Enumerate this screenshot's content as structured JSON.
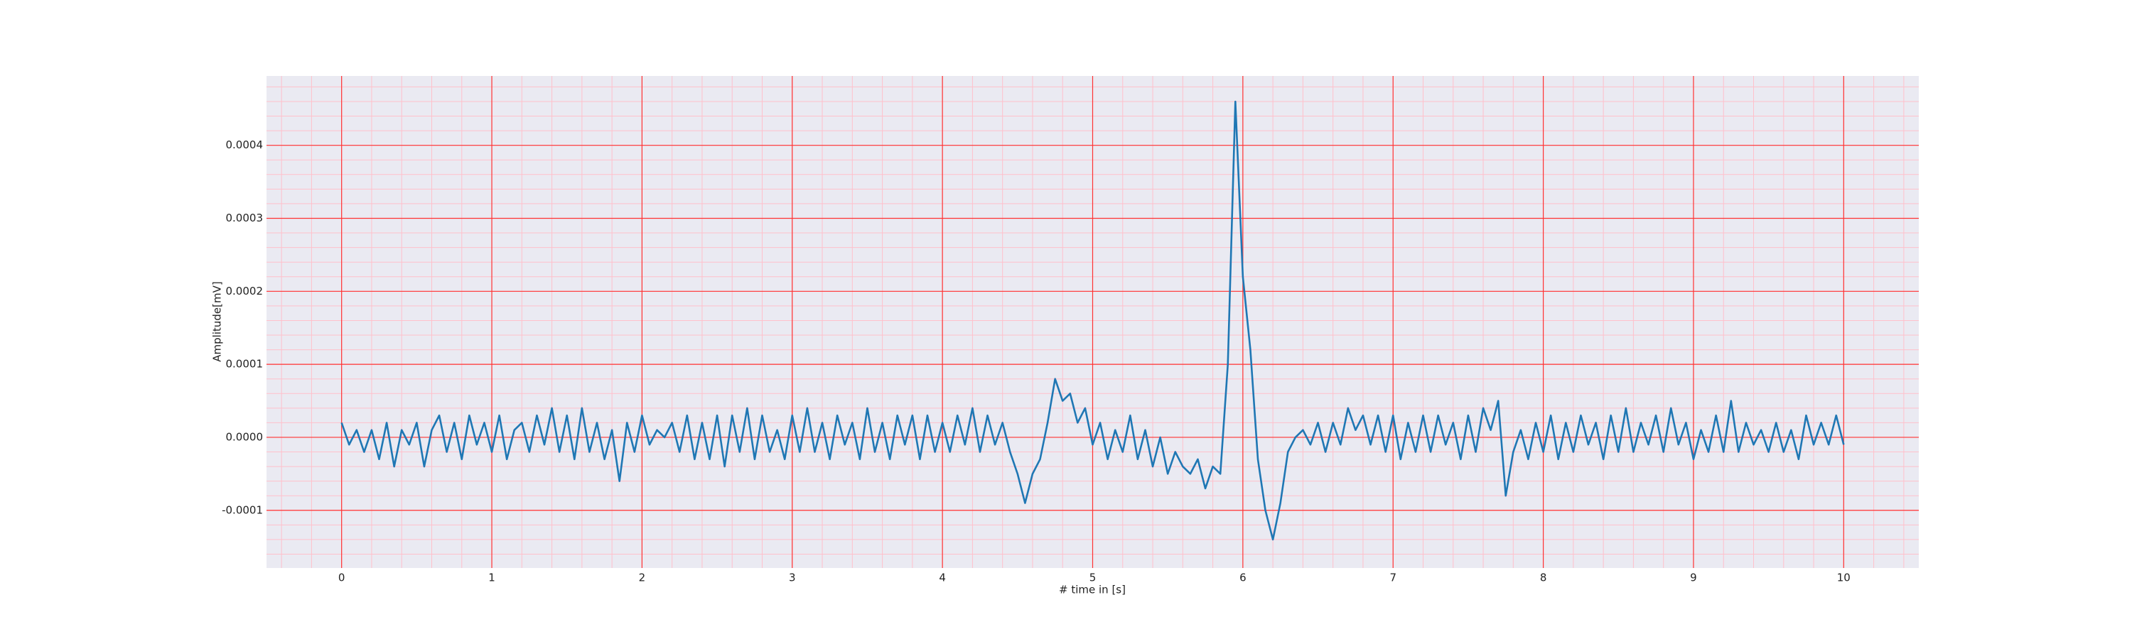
{
  "chart_data": {
    "type": "line",
    "xlabel": "# time in [s]",
    "ylabel": "Amplitude[mV]",
    "color": "#1f77b4",
    "grid": true,
    "minor_grid": true,
    "xlim": [
      -0.5,
      10.5
    ],
    "xticks": [
      0,
      1,
      2,
      3,
      4,
      5,
      6,
      7,
      8,
      9,
      10
    ],
    "ylim": [
      -0.000179,
      0.000495
    ],
    "yticks": [
      -0.0001,
      {
        "value": 0,
        "label": "0.0000"
      },
      0.0001,
      0.0002,
      0.0003,
      0.0004
    ],
    "x": [
      0,
      0.05,
      0.1,
      0.15,
      0.2,
      0.25,
      0.3,
      0.35,
      0.4,
      0.45,
      0.5,
      0.55,
      0.6,
      0.65,
      0.7,
      0.75,
      0.8,
      0.85,
      0.9,
      0.95,
      1,
      1.05,
      1.1,
      1.15,
      1.2,
      1.25,
      1.3,
      1.35,
      1.4,
      1.45,
      1.5,
      1.55,
      1.6,
      1.65,
      1.7,
      1.75,
      1.8,
      1.85,
      1.9,
      1.95,
      2,
      2.05,
      2.1,
      2.15,
      2.2,
      2.25,
      2.3,
      2.35,
      2.4,
      2.45,
      2.5,
      2.55,
      2.6,
      2.65,
      2.7,
      2.75,
      2.8,
      2.85,
      2.9,
      2.95,
      3,
      3.05,
      3.1,
      3.15,
      3.2,
      3.25,
      3.3,
      3.35,
      3.4,
      3.45,
      3.5,
      3.55,
      3.6,
      3.65,
      3.7,
      3.75,
      3.8,
      3.85,
      3.9,
      3.95,
      4,
      4.05,
      4.1,
      4.15,
      4.2,
      4.25,
      4.3,
      4.35,
      4.4,
      4.45,
      4.5,
      4.55,
      4.6,
      4.65,
      4.7,
      4.75,
      4.8,
      4.85,
      4.9,
      4.95,
      5,
      5.05,
      5.1,
      5.15,
      5.2,
      5.25,
      5.3,
      5.35,
      5.4,
      5.45,
      5.5,
      5.55,
      5.6,
      5.65,
      5.7,
      5.75,
      5.8,
      5.85,
      5.9,
      5.95,
      6,
      6.05,
      6.1,
      6.15,
      6.2,
      6.25,
      6.3,
      6.35,
      6.4,
      6.45,
      6.5,
      6.55,
      6.6,
      6.65,
      6.7,
      6.75,
      6.8,
      6.85,
      6.9,
      6.95,
      7,
      7.05,
      7.1,
      7.15,
      7.2,
      7.25,
      7.3,
      7.35,
      7.4,
      7.45,
      7.5,
      7.55,
      7.6,
      7.65,
      7.7,
      7.75,
      7.8,
      7.85,
      7.9,
      7.95,
      8,
      8.05,
      8.1,
      8.15,
      8.2,
      8.25,
      8.3,
      8.35,
      8.4,
      8.45,
      8.5,
      8.55,
      8.6,
      8.65,
      8.7,
      8.75,
      8.8,
      8.85,
      8.9,
      8.95,
      9,
      9.05,
      9.1,
      9.15,
      9.2,
      9.25,
      9.3,
      9.35,
      9.4,
      9.45,
      9.5,
      9.55,
      9.6,
      9.65,
      9.7,
      9.75,
      9.8,
      9.85,
      9.9,
      9.95,
      10
    ],
    "values": [
      2e-05,
      -1e-05,
      1e-05,
      -2e-05,
      1e-05,
      -3e-05,
      2e-05,
      -4e-05,
      1e-05,
      -1e-05,
      2e-05,
      -4e-05,
      1e-05,
      3e-05,
      -2e-05,
      2e-05,
      -3e-05,
      3e-05,
      -1e-05,
      2e-05,
      -2e-05,
      3e-05,
      -3e-05,
      1e-05,
      2e-05,
      -2e-05,
      3e-05,
      -1e-05,
      4e-05,
      -2e-05,
      3e-05,
      -3e-05,
      4e-05,
      -2e-05,
      2e-05,
      -3e-05,
      1e-05,
      -6e-05,
      2e-05,
      -2e-05,
      3e-05,
      -1e-05,
      1e-05,
      0,
      2e-05,
      -2e-05,
      3e-05,
      -3e-05,
      2e-05,
      -3e-05,
      3e-05,
      -4e-05,
      3e-05,
      -2e-05,
      4e-05,
      -3e-05,
      3e-05,
      -2e-05,
      1e-05,
      -3e-05,
      3e-05,
      -2e-05,
      4e-05,
      -2e-05,
      2e-05,
      -3e-05,
      3e-05,
      -1e-05,
      2e-05,
      -3e-05,
      4e-05,
      -2e-05,
      2e-05,
      -3e-05,
      3e-05,
      -1e-05,
      3e-05,
      -3e-05,
      3e-05,
      -2e-05,
      2e-05,
      -2e-05,
      3e-05,
      -1e-05,
      4e-05,
      -2e-05,
      3e-05,
      -1e-05,
      2e-05,
      -2e-05,
      -5e-05,
      -9e-05,
      -5e-05,
      -3e-05,
      2e-05,
      8e-05,
      5e-05,
      6e-05,
      2e-05,
      4e-05,
      -1e-05,
      2e-05,
      -3e-05,
      1e-05,
      -2e-05,
      3e-05,
      -3e-05,
      1e-05,
      -4e-05,
      0,
      -5e-05,
      -2e-05,
      -4e-05,
      -5e-05,
      -3e-05,
      -7e-05,
      -4e-05,
      -5e-05,
      0.0001,
      0.00046,
      0.00022,
      0.00012,
      -3e-05,
      -0.0001,
      -0.00014,
      -9e-05,
      -2e-05,
      0,
      1e-05,
      -1e-05,
      2e-05,
      -2e-05,
      2e-05,
      -1e-05,
      4e-05,
      1e-05,
      3e-05,
      -1e-05,
      3e-05,
      -2e-05,
      3e-05,
      -3e-05,
      2e-05,
      -2e-05,
      3e-05,
      -2e-05,
      3e-05,
      -1e-05,
      2e-05,
      -3e-05,
      3e-05,
      -2e-05,
      4e-05,
      1e-05,
      5e-05,
      -8e-05,
      -2e-05,
      1e-05,
      -3e-05,
      2e-05,
      -2e-05,
      3e-05,
      -3e-05,
      2e-05,
      -2e-05,
      3e-05,
      -1e-05,
      2e-05,
      -3e-05,
      3e-05,
      -2e-05,
      4e-05,
      -2e-05,
      2e-05,
      -1e-05,
      3e-05,
      -2e-05,
      4e-05,
      -1e-05,
      2e-05,
      -3e-05,
      1e-05,
      -2e-05,
      3e-05,
      -2e-05,
      5e-05,
      -2e-05,
      2e-05,
      -1e-05,
      1e-05,
      -2e-05,
      2e-05,
      -2e-05,
      1e-05,
      -3e-05,
      3e-05,
      -1e-05,
      2e-05,
      -1e-05,
      3e-05,
      -1e-05
    ]
  }
}
